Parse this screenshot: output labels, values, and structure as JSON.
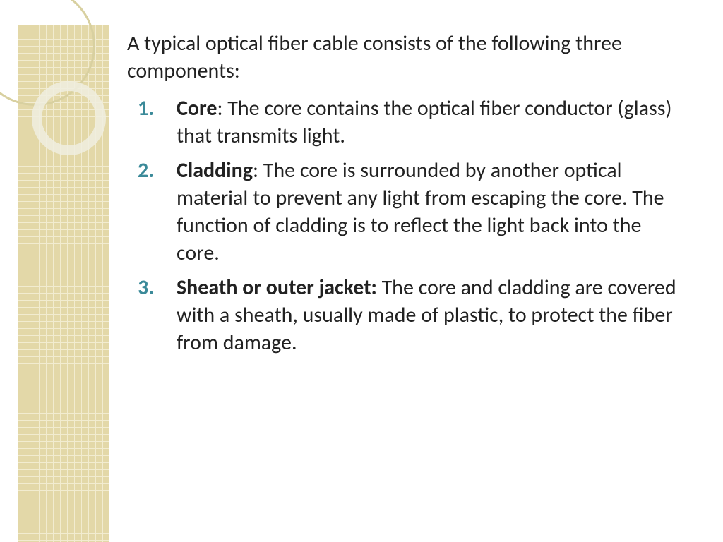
{
  "intro": "A typical optical fiber cable consists of the following three components:",
  "items": [
    {
      "term": "Core",
      "sep": ": ",
      "desc": "The core contains the optical fiber conductor (glass) that transmits light."
    },
    {
      "term": "Cladding",
      "sep": ": ",
      "desc": "The core is surrounded by another optical material to prevent any light from escaping the core. The function of cladding is to reflect the light back into the core."
    },
    {
      "term": "Sheath or outer jacket:",
      "sep": " ",
      "desc": "The core and cladding are covered with a sheath, usually made of plastic, to  protect the fiber from damage."
    }
  ],
  "style": {
    "number_color": "#3b8a99",
    "text_color": "#222222",
    "body_fontsize": 30,
    "sidebar_grid_color": "#e3d8a8",
    "background": "#ffffff"
  }
}
